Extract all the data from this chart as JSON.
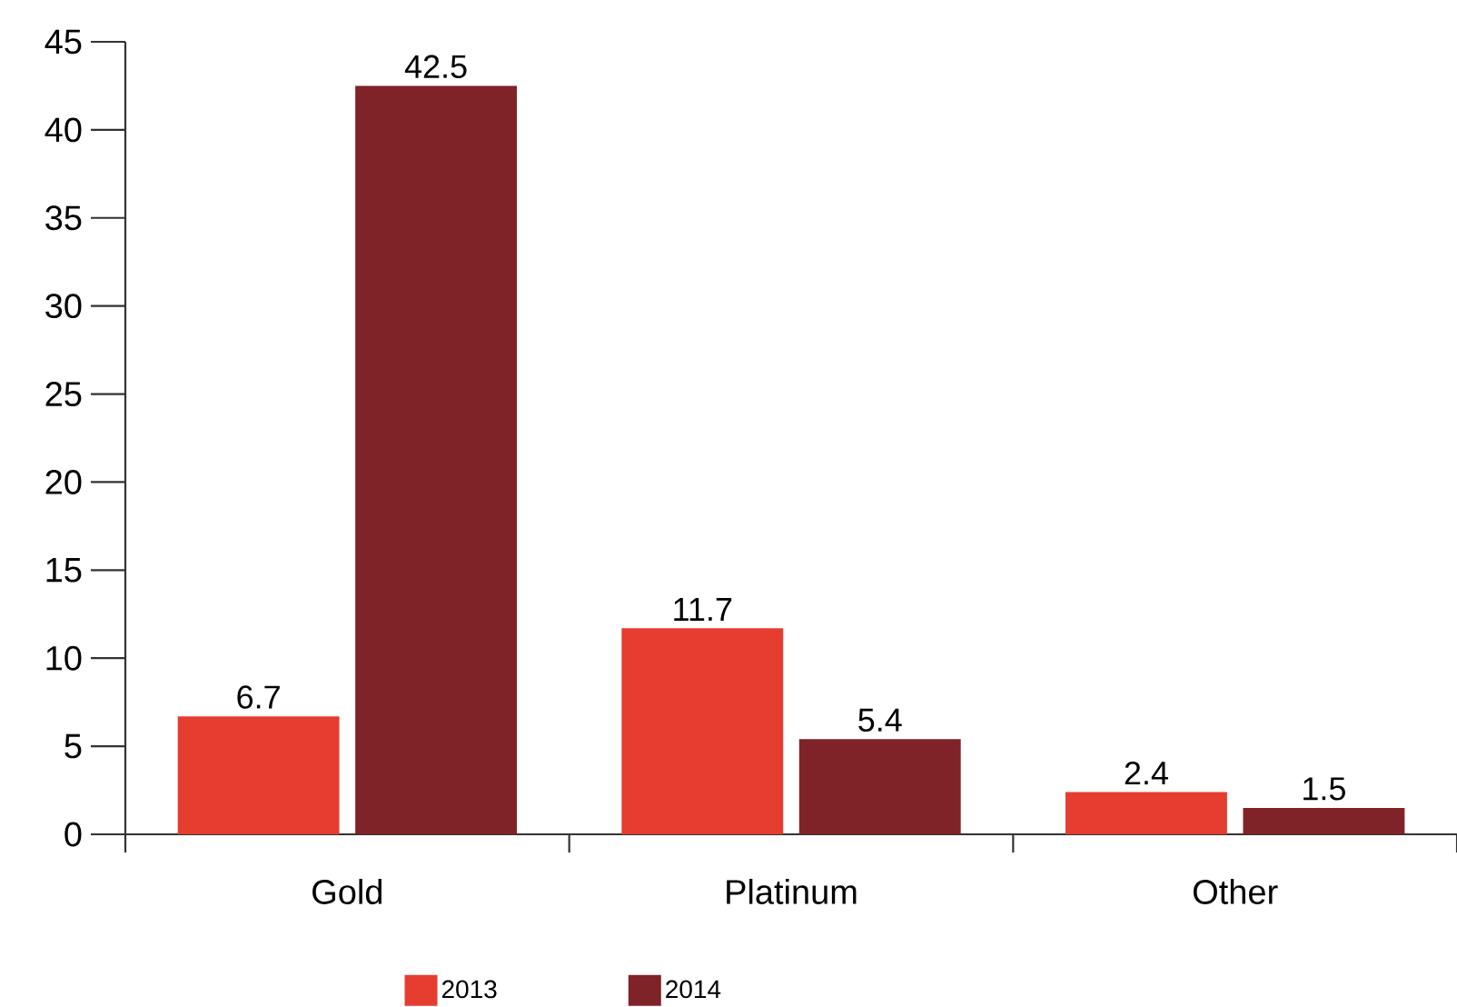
{
  "chart_data": {
    "type": "bar",
    "categories": [
      "Gold",
      "Platinum",
      "Other"
    ],
    "series": [
      {
        "name": "2013",
        "color": "#e53d30",
        "values": [
          6.7,
          11.7,
          2.4
        ]
      },
      {
        "name": "2014",
        "color": "#7f2329",
        "values": [
          42.5,
          5.4,
          1.5
        ]
      }
    ],
    "ylim": [
      0,
      45
    ],
    "yticks": [
      0,
      5,
      10,
      15,
      20,
      25,
      30,
      35,
      40,
      45
    ],
    "data_labels": true,
    "legend": "bottom"
  }
}
